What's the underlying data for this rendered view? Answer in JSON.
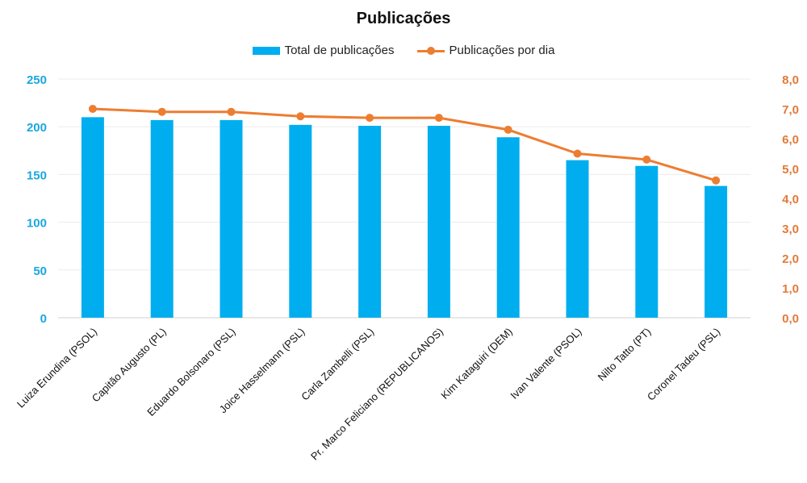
{
  "chart_data": {
    "type": "bar",
    "title": "Publicações",
    "categories": [
      "Luiza Erundina (PSOL)",
      "Capitão Augusto (PL)",
      "Eduardo Bolsonaro (PSL)",
      "Joice Hasselmann (PSL)",
      "Carla Zambelli (PSL)",
      "Pr. Marco Feliciano (REPUBLICANOS)",
      "Kim Kataguiri (DEM)",
      "Ivan Valente (PSOL)",
      "Nilto Tatto (PT)",
      "Coronel Tadeu (PSL)"
    ],
    "series": [
      {
        "name": "Total de publicações",
        "type": "bar",
        "axis": "left",
        "color": "#00AEEF",
        "values": [
          210,
          207,
          207,
          202,
          201,
          201,
          189,
          165,
          159,
          138
        ]
      },
      {
        "name": "Publicações por dia",
        "type": "line",
        "axis": "right",
        "color": "#ED7D31",
        "values": [
          7.0,
          6.9,
          6.9,
          6.75,
          6.7,
          6.7,
          6.3,
          5.5,
          5.3,
          4.6
        ]
      }
    ],
    "y_left": {
      "min": 0,
      "max": 250,
      "ticks": [
        "0",
        "50",
        "100",
        "150",
        "200",
        "250"
      ],
      "color": "#1AA7DD"
    },
    "y_right": {
      "min": 0,
      "max": 8,
      "ticks": [
        "0,0",
        "1,0",
        "2,0",
        "3,0",
        "4,0",
        "5,0",
        "6,0",
        "7,0",
        "8,0"
      ],
      "color": "#E07B39"
    },
    "grid": true,
    "legend_position": "top"
  }
}
